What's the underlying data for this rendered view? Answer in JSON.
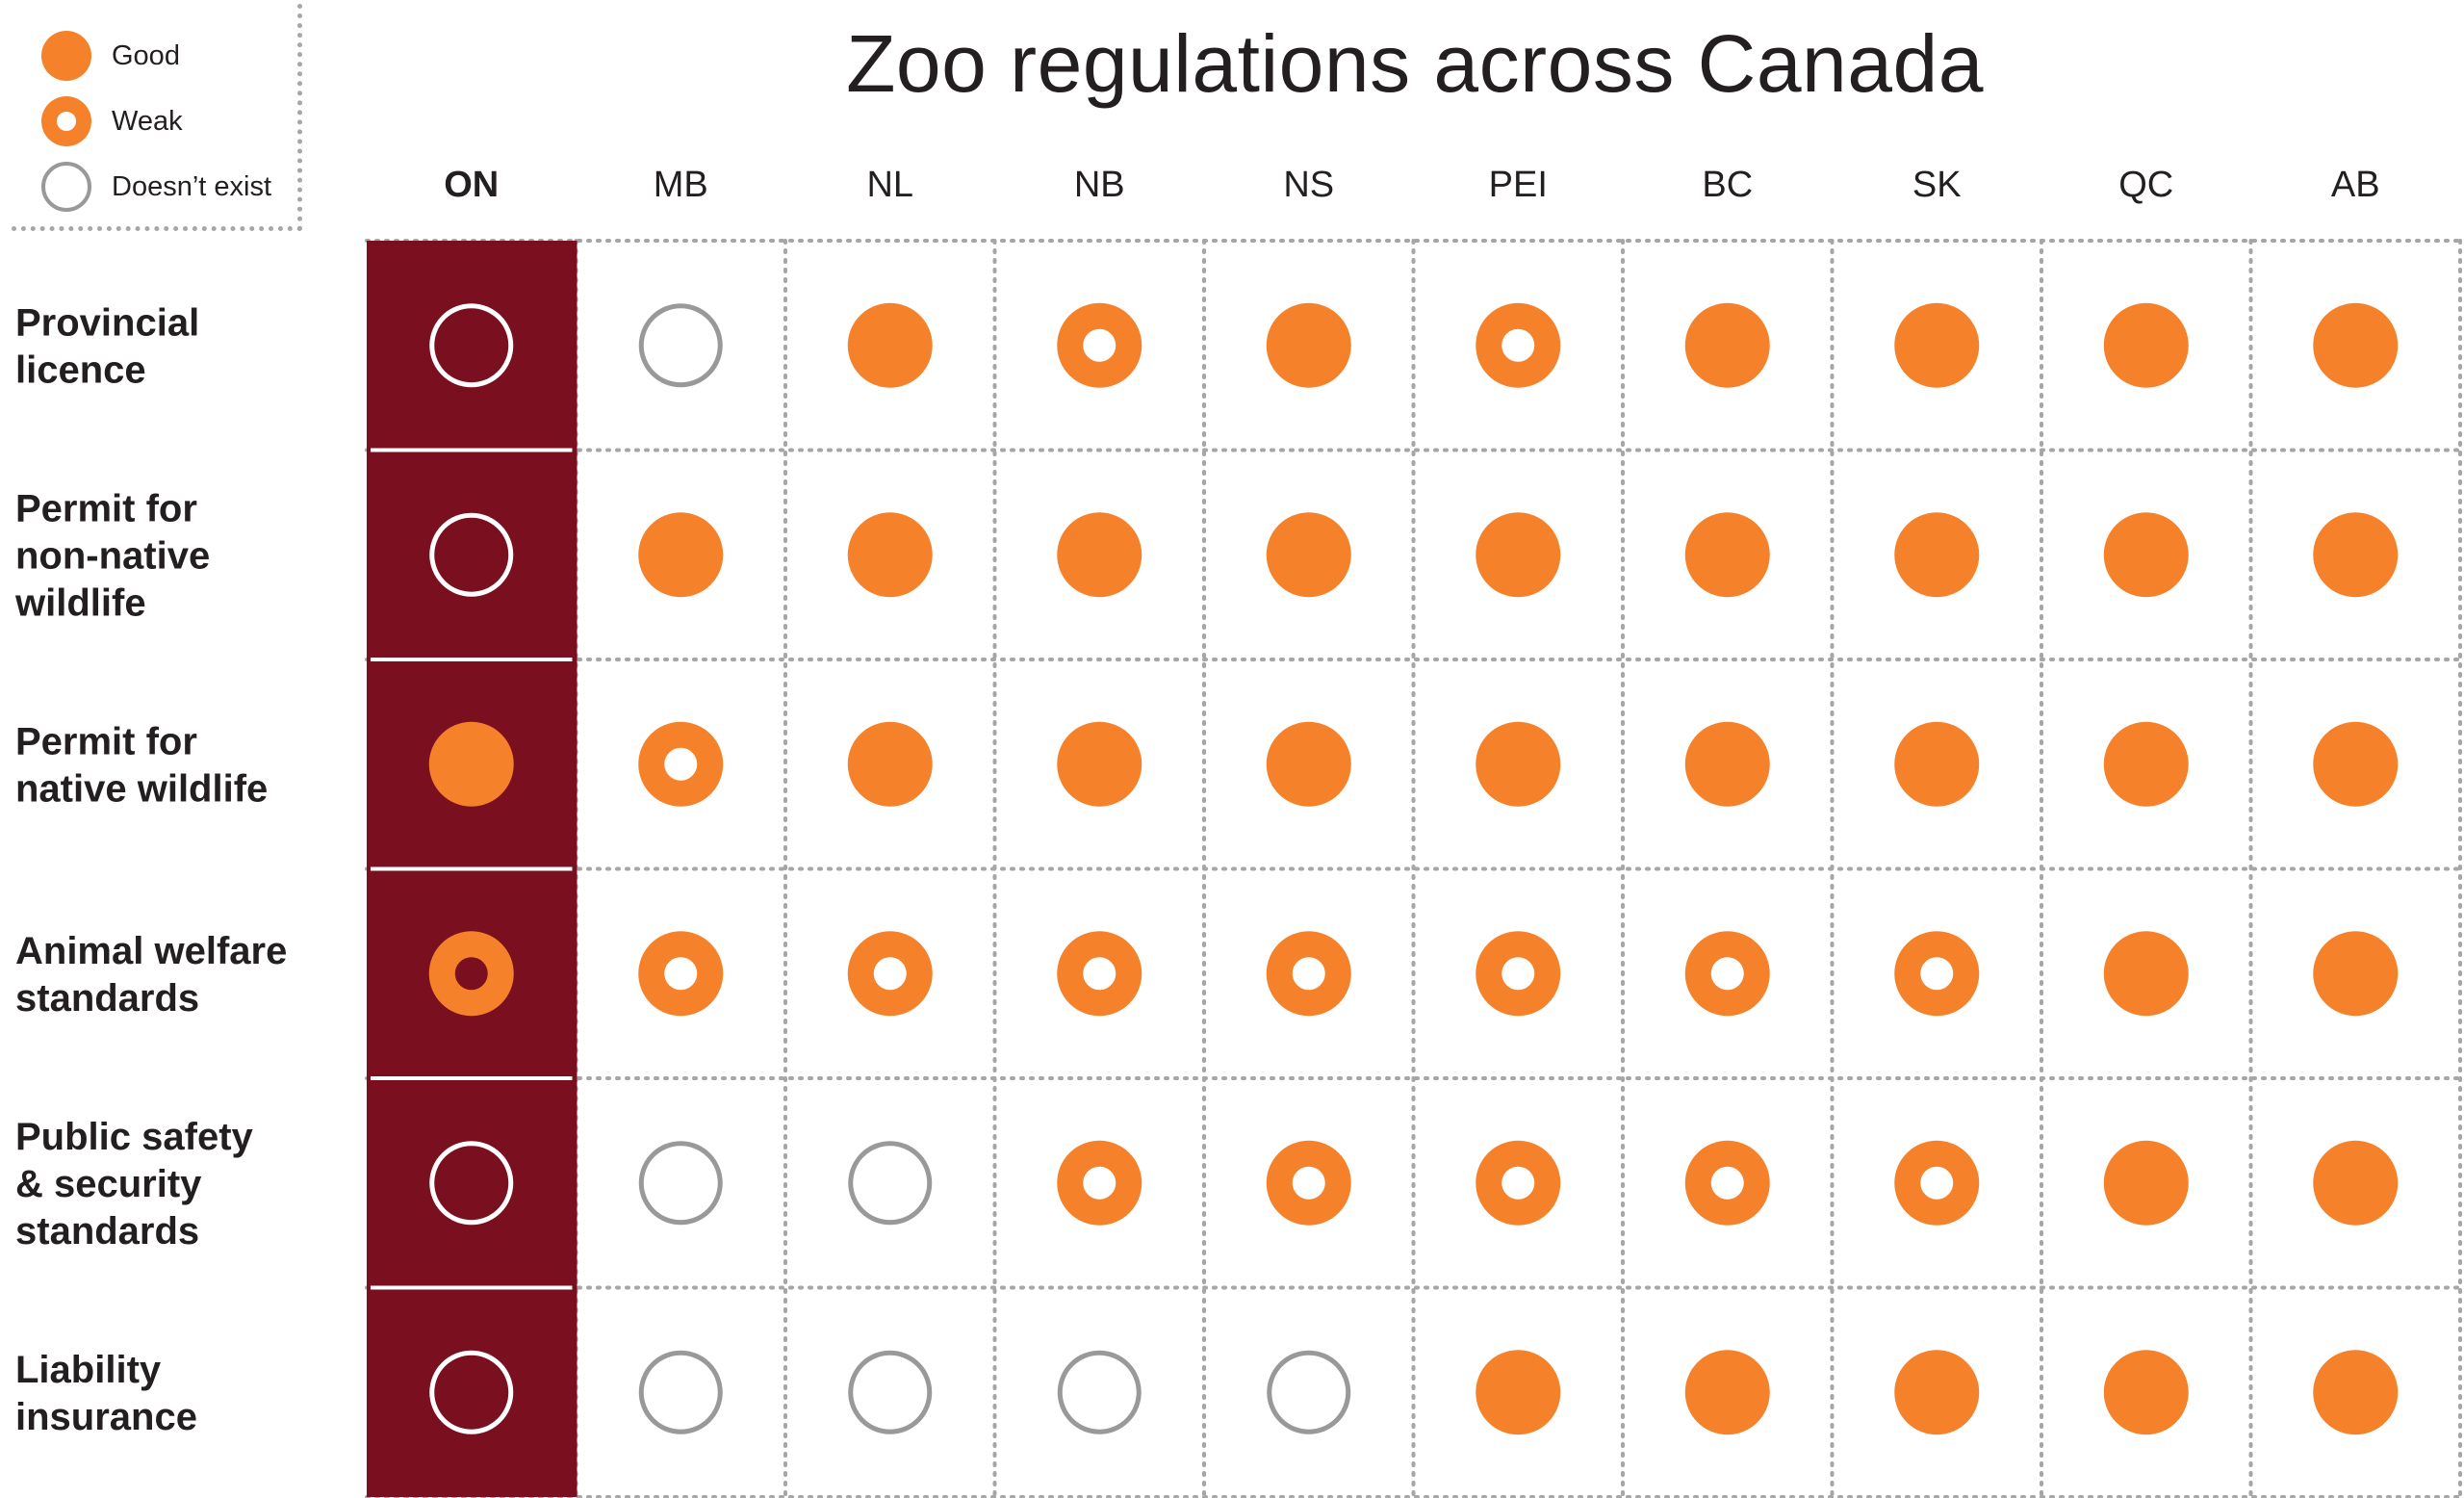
{
  "legend": {
    "items": [
      {
        "symbol": "good",
        "label": "Good"
      },
      {
        "symbol": "weak",
        "label": "Weak"
      },
      {
        "symbol": "none",
        "label": "Doesn’t exist"
      }
    ]
  },
  "colors": {
    "good": "#f5822a",
    "weak_inner": "#ffffff",
    "none_stroke": "#999999",
    "highlight_column_bg": "#7a0f1f",
    "highlight_none_stroke": "#ffffff",
    "grid": "#a6a6a6"
  },
  "chart_data": {
    "type": "table",
    "title": "Zoo regulations across Canada",
    "columns": [
      "ON",
      "MB",
      "NL",
      "NB",
      "NS",
      "PEI",
      "BC",
      "SK",
      "QC",
      "AB"
    ],
    "highlight_column": "ON",
    "rows": [
      {
        "label_lines": [
          "Provincial",
          "licence"
        ],
        "values": [
          "none",
          "none",
          "good",
          "weak",
          "good",
          "weak",
          "good",
          "good",
          "good",
          "good"
        ]
      },
      {
        "label_lines": [
          "Permit for",
          "non-native",
          "wildlife"
        ],
        "values": [
          "none",
          "good",
          "good",
          "good",
          "good",
          "good",
          "good",
          "good",
          "good",
          "good"
        ]
      },
      {
        "label_lines": [
          "Permit for",
          "native wildlife"
        ],
        "values": [
          "good",
          "weak",
          "good",
          "good",
          "good",
          "good",
          "good",
          "good",
          "good",
          "good"
        ]
      },
      {
        "label_lines": [
          "Animal welfare",
          "standards"
        ],
        "values": [
          "weak",
          "weak",
          "weak",
          "weak",
          "weak",
          "weak",
          "weak",
          "weak",
          "good",
          "good"
        ]
      },
      {
        "label_lines": [
          "Public safety",
          "& security",
          "standards"
        ],
        "values": [
          "none",
          "none",
          "none",
          "weak",
          "weak",
          "weak",
          "weak",
          "weak",
          "good",
          "good"
        ]
      },
      {
        "label_lines": [
          "Liability",
          "insurance"
        ],
        "values": [
          "none",
          "none",
          "none",
          "none",
          "none",
          "good",
          "good",
          "good",
          "good",
          "good"
        ]
      }
    ]
  }
}
